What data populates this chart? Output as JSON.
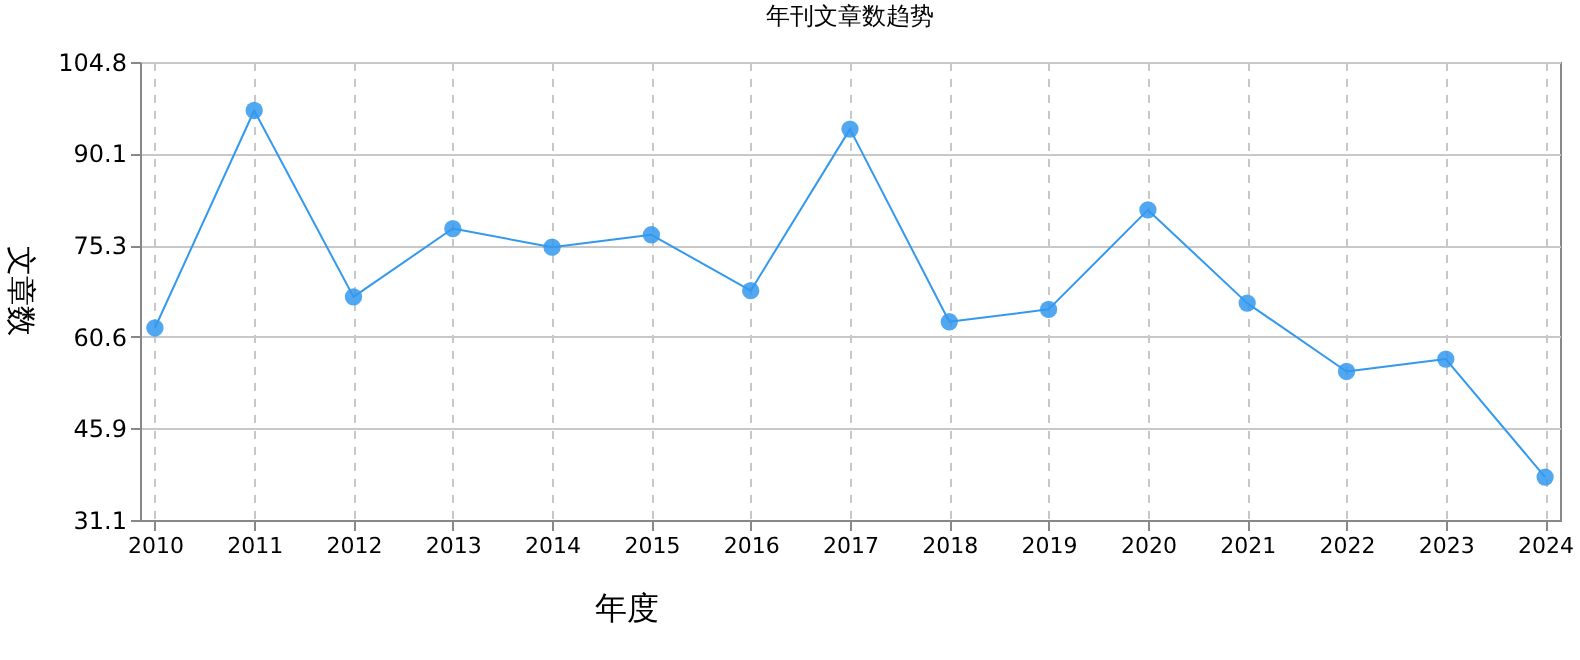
{
  "chart_data": {
    "type": "line",
    "title": "年刊文章数趋势",
    "xlabel": "年度",
    "ylabel": "文章数",
    "categories": [
      "2010",
      "2011",
      "2012",
      "2013",
      "2014",
      "2015",
      "2016",
      "2017",
      "2018",
      "2019",
      "2020",
      "2021",
      "2022",
      "2023",
      "2024"
    ],
    "series": [
      {
        "color": "#3399ee",
        "values": [
          62,
          97,
          67,
          78,
          75,
          77,
          68,
          94,
          63,
          65,
          81,
          66,
          55,
          57,
          38
        ]
      }
    ],
    "ylim": [
      31.1,
      104.8
    ],
    "yticks": [
      31.1,
      45.9,
      60.6,
      75.3,
      90.1,
      104.8
    ],
    "grid": true,
    "marker": "circle",
    "line_style": "solid"
  }
}
